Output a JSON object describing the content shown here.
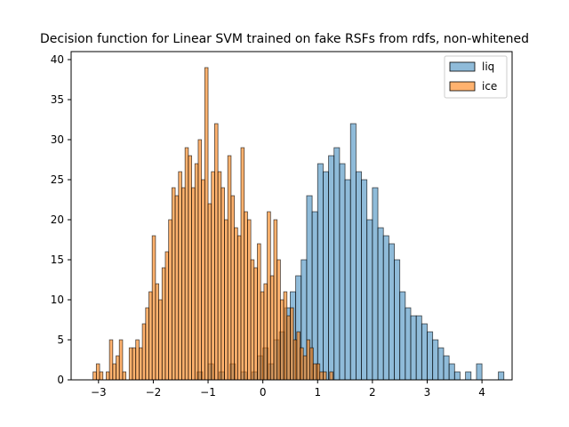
{
  "chart_data": {
    "type": "histogram",
    "title": "Decision function for Linear SVM trained on fake RSFs from rdfs, non-whitened",
    "xlabel": "",
    "ylabel": "",
    "xlim": [
      -3.5,
      4.55
    ],
    "ylim": [
      0,
      41
    ],
    "xticks": [
      -3,
      -2,
      -1,
      0,
      1,
      2,
      3,
      4
    ],
    "yticks": [
      0,
      5,
      10,
      15,
      20,
      25,
      30,
      35,
      40
    ],
    "legend": {
      "position": "top-right"
    },
    "grid": false,
    "series": [
      {
        "name": "liq",
        "color": "#1f77b4",
        "alpha": 0.5,
        "bin_start": -1.2,
        "bin_width": 0.1,
        "counts": [
          1,
          0,
          2,
          0,
          1,
          0,
          2,
          0,
          1,
          0,
          1,
          3,
          4,
          2,
          5,
          6,
          9,
          11,
          13,
          15,
          23,
          21,
          27,
          26,
          28,
          29,
          27,
          25,
          32,
          26,
          25,
          20,
          24,
          19,
          18,
          17,
          15,
          11,
          9,
          8,
          8,
          7,
          6,
          5,
          4,
          3,
          2,
          1,
          0,
          1,
          0,
          2,
          0,
          0,
          0,
          1
        ]
      },
      {
        "name": "ice",
        "color": "#ff7f0e",
        "alpha": 0.6,
        "bin_start": -3.1,
        "bin_width": 0.06,
        "counts": [
          1,
          2,
          1,
          0,
          1,
          5,
          2,
          3,
          5,
          1,
          0,
          4,
          4,
          5,
          4,
          7,
          9,
          11,
          18,
          12,
          10,
          14,
          16,
          20,
          24,
          23,
          26,
          24,
          29,
          28,
          24,
          27,
          30,
          25,
          39,
          22,
          26,
          32,
          26,
          24,
          20,
          28,
          23,
          19,
          18,
          29,
          21,
          20,
          15,
          14,
          17,
          11,
          12,
          21,
          13,
          20,
          15,
          10,
          11,
          8,
          9,
          5,
          6,
          4,
          3,
          5,
          4,
          2,
          2,
          1,
          1,
          0,
          1
        ]
      }
    ]
  }
}
